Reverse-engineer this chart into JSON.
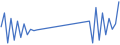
{
  "values": [
    9000,
    14000,
    3000,
    12000,
    4000,
    11000,
    5000,
    10000,
    6000,
    8000,
    7500,
    7800,
    8000,
    8200,
    8400,
    8600,
    8800,
    9000,
    9200,
    9400,
    9600,
    9800,
    10000,
    10200,
    10400,
    10600,
    10800,
    11000,
    3000,
    16000,
    4000,
    14000,
    6000,
    12000,
    8000,
    10000,
    18000
  ],
  "line_color": "#4472c4",
  "bg_color": "#ffffff",
  "linewidth": 0.9
}
